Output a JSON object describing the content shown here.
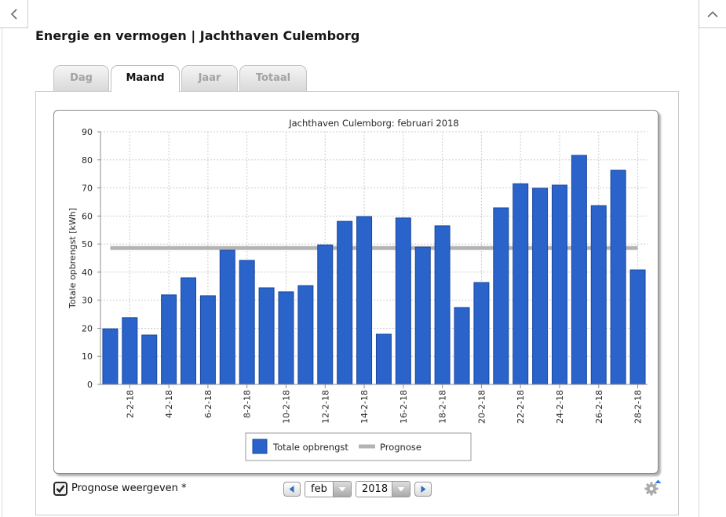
{
  "nav": {
    "back_icon": "chevron-left-icon",
    "collapse_icon": "chevron-up-icon"
  },
  "header": {
    "title": "Energie en vermogen | Jachthaven Culemborg"
  },
  "tabs": [
    {
      "label": "Dag",
      "active": false
    },
    {
      "label": "Maand",
      "active": true
    },
    {
      "label": "Jaar",
      "active": false
    },
    {
      "label": "Totaal",
      "active": false
    }
  ],
  "controls": {
    "prognose_toggle": {
      "label": "Prognose weergeven *",
      "checked": true
    },
    "prev_icon": "triangle-left-icon",
    "month_select": {
      "value": "feb",
      "arrow_icon": "triangle-down-icon"
    },
    "year_select": {
      "value": "2018",
      "arrow_icon": "triangle-down-icon"
    },
    "next_icon": "triangle-right-icon",
    "settings_icon": "gear-icon"
  },
  "colors": {
    "bar": "#2a63c9",
    "bar_border": "#1b479e",
    "prognose": "#b3b3b3",
    "nav_arrow": "#2b6fc9",
    "tab_inactive_text": "#a3a3a3"
  },
  "chart_data": {
    "type": "bar",
    "title": "Jachthaven Culemborg: februari 2018",
    "ylabel": "Totale opbrengst [kWh]",
    "ylim": [
      0,
      90
    ],
    "yticks": [
      0,
      10,
      20,
      30,
      40,
      50,
      60,
      70,
      80,
      90
    ],
    "x": [
      1,
      2,
      3,
      4,
      5,
      6,
      7,
      8,
      9,
      10,
      11,
      12,
      13,
      14,
      15,
      16,
      17,
      18,
      19,
      20,
      21,
      22,
      23,
      24,
      25,
      26,
      27,
      28
    ],
    "xticks": [
      2,
      4,
      6,
      8,
      10,
      12,
      14,
      16,
      18,
      20,
      22,
      24,
      26,
      28
    ],
    "xtick_labels": [
      "2-2-18",
      "4-2-18",
      "6-2-18",
      "8-2-18",
      "10-2-18",
      "12-2-18",
      "14-2-18",
      "16-2-18",
      "18-2-18",
      "20-2-18",
      "22-2-18",
      "24-2-18",
      "26-2-18",
      "28-2-18"
    ],
    "grid": true,
    "legend": "bottom",
    "series": [
      {
        "name": "Totale opbrengst",
        "type": "bar",
        "color": "#2a63c9",
        "values": [
          19.8,
          23.8,
          17.6,
          31.9,
          38.0,
          31.6,
          47.8,
          44.2,
          34.4,
          33.0,
          35.2,
          49.7,
          58.1,
          59.8,
          17.9,
          59.3,
          48.9,
          56.5,
          27.4,
          36.3,
          62.9,
          71.5,
          69.9,
          71.0,
          81.6,
          63.7,
          76.3,
          40.8
        ]
      },
      {
        "name": "Prognose",
        "type": "line",
        "color": "#b3b3b3",
        "value": 48.6
      }
    ]
  }
}
